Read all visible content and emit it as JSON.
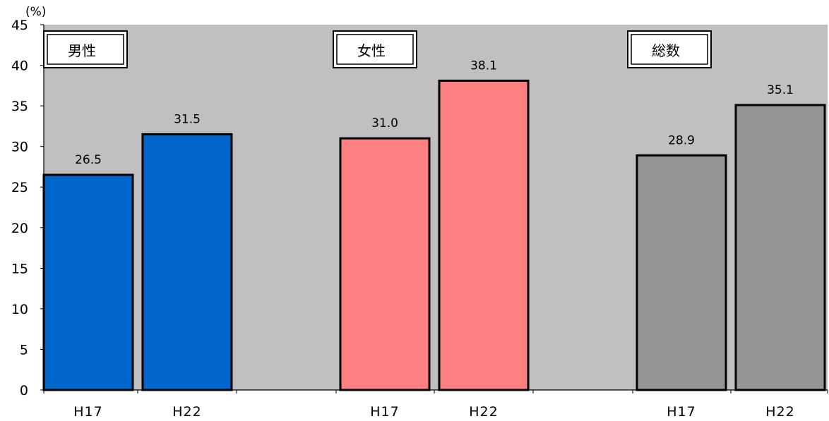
{
  "chart_data": {
    "type": "bar",
    "y_unit": "(%)",
    "ylim": [
      0,
      45
    ],
    "yticks": [
      0,
      5,
      10,
      15,
      20,
      25,
      30,
      35,
      40,
      45
    ],
    "grid": false,
    "plot_background": "#c0c0c0",
    "groups": [
      {
        "title": "男性",
        "color": "#0066cc",
        "categories": [
          "H17",
          "H22"
        ],
        "values": [
          26.5,
          31.5
        ],
        "value_labels": [
          "26.5",
          "31.5"
        ]
      },
      {
        "title": "女性",
        "color": "#ff8080",
        "categories": [
          "H17",
          "H22"
        ],
        "values": [
          31.0,
          38.1
        ],
        "value_labels": [
          "31.0",
          "38.1"
        ]
      },
      {
        "title": "総数",
        "color": "#969696",
        "categories": [
          "H17",
          "H22"
        ],
        "values": [
          28.9,
          35.1
        ],
        "value_labels": [
          "28.9",
          "35.1"
        ]
      }
    ]
  }
}
